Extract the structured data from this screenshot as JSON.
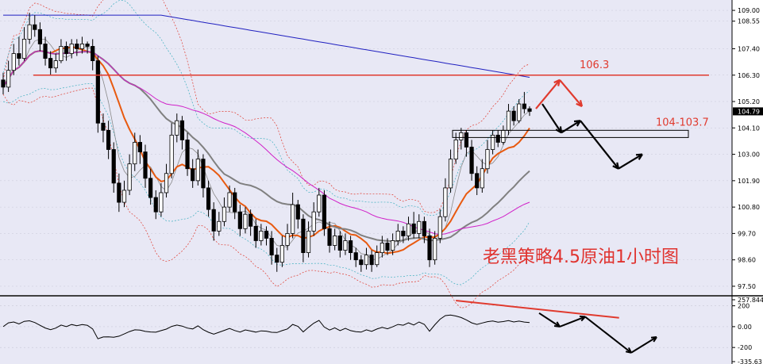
{
  "chart_data": {
    "type": "candlestick",
    "title": "老黑策略4.5原油1小时图",
    "background": "#e8e8f5",
    "price_axis": {
      "ticks": [
        "109.00",
        "108.55",
        "107.40",
        "106.30",
        "105.20",
        "104.10",
        "103.00",
        "101.90",
        "100.80",
        "99.70",
        "98.60",
        "97.50"
      ],
      "ylim": [
        97.3,
        109.3
      ],
      "last_price": "104.79"
    },
    "annotations": {
      "level_106": "106.3",
      "zone_label": "104-103.7"
    },
    "candles": [
      [
        106.1,
        105.8,
        106.4,
        105.5
      ],
      [
        105.8,
        106.5,
        106.9,
        105.6
      ],
      [
        106.5,
        107.2,
        107.6,
        106.3
      ],
      [
        107.2,
        107.0,
        107.9,
        106.7
      ],
      [
        107.0,
        107.8,
        108.3,
        106.9
      ],
      [
        107.8,
        108.4,
        108.9,
        107.6
      ],
      [
        108.4,
        108.2,
        108.8,
        107.9
      ],
      [
        108.2,
        107.6,
        108.5,
        107.3
      ],
      [
        107.6,
        107.0,
        107.9,
        106.7
      ],
      [
        107.0,
        106.6,
        107.3,
        106.3
      ],
      [
        106.6,
        106.9,
        107.2,
        106.4
      ],
      [
        106.9,
        107.5,
        107.8,
        106.8
      ],
      [
        107.5,
        107.2,
        107.7,
        106.9
      ],
      [
        107.2,
        107.6,
        107.8,
        107.0
      ],
      [
        107.6,
        107.4,
        107.8,
        107.1
      ],
      [
        107.4,
        107.6,
        107.9,
        107.2
      ],
      [
        107.6,
        107.5,
        107.7,
        107.2
      ],
      [
        107.5,
        106.9,
        107.8,
        106.5
      ],
      [
        106.9,
        104.3,
        107.1,
        103.9
      ],
      [
        104.3,
        104.0,
        104.7,
        103.5
      ],
      [
        104.0,
        103.2,
        104.4,
        102.8
      ],
      [
        103.2,
        101.8,
        103.5,
        101.4
      ],
      [
        101.8,
        101.0,
        102.2,
        100.6
      ],
      [
        101.0,
        101.5,
        101.9,
        100.8
      ],
      [
        101.5,
        102.6,
        103.0,
        101.3
      ],
      [
        102.6,
        103.5,
        103.9,
        102.3
      ],
      [
        103.5,
        103.1,
        103.8,
        102.6
      ],
      [
        103.1,
        102.0,
        103.4,
        101.6
      ],
      [
        102.0,
        101.2,
        102.4,
        100.9
      ],
      [
        101.2,
        100.6,
        101.5,
        100.3
      ],
      [
        100.6,
        101.4,
        101.8,
        100.4
      ],
      [
        101.4,
        102.2,
        102.6,
        101.2
      ],
      [
        102.2,
        103.8,
        104.3,
        102.0
      ],
      [
        103.8,
        104.4,
        104.7,
        103.5
      ],
      [
        104.4,
        103.6,
        104.6,
        103.2
      ],
      [
        103.6,
        102.4,
        103.9,
        102.1
      ],
      [
        102.4,
        101.9,
        102.8,
        101.6
      ],
      [
        101.9,
        102.8,
        103.2,
        101.7
      ],
      [
        102.8,
        101.6,
        103.0,
        101.2
      ],
      [
        101.6,
        100.7,
        101.9,
        100.4
      ],
      [
        100.7,
        99.8,
        101.0,
        99.4
      ],
      [
        99.8,
        100.2,
        100.6,
        99.6
      ],
      [
        100.2,
        100.8,
        101.2,
        100.0
      ],
      [
        100.8,
        101.4,
        101.7,
        100.6
      ],
      [
        101.4,
        100.6,
        101.6,
        100.3
      ],
      [
        100.6,
        99.9,
        100.9,
        99.6
      ],
      [
        99.9,
        100.5,
        100.8,
        99.7
      ],
      [
        100.5,
        100.0,
        100.7,
        99.6
      ],
      [
        100.0,
        99.4,
        100.3,
        99.1
      ],
      [
        99.4,
        99.8,
        100.1,
        99.2
      ],
      [
        99.8,
        99.5,
        100.0,
        99.2
      ],
      [
        99.5,
        98.8,
        99.8,
        98.4
      ],
      [
        98.8,
        98.5,
        99.1,
        98.1
      ],
      [
        98.5,
        99.2,
        99.6,
        98.3
      ],
      [
        99.2,
        99.7,
        100.1,
        99.0
      ],
      [
        99.7,
        100.9,
        101.4,
        99.5
      ],
      [
        100.9,
        100.3,
        101.1,
        99.9
      ],
      [
        100.3,
        98.9,
        100.5,
        98.5
      ],
      [
        98.9,
        99.8,
        100.2,
        98.7
      ],
      [
        99.8,
        100.6,
        101.0,
        99.6
      ],
      [
        100.6,
        101.3,
        101.6,
        100.4
      ],
      [
        101.3,
        99.9,
        101.5,
        99.6
      ],
      [
        99.9,
        99.2,
        100.2,
        98.9
      ],
      [
        99.2,
        99.6,
        99.9,
        99.0
      ],
      [
        99.6,
        99.0,
        99.8,
        98.7
      ],
      [
        99.0,
        99.4,
        99.7,
        98.8
      ],
      [
        99.4,
        98.9,
        99.6,
        98.6
      ],
      [
        98.9,
        98.6,
        99.1,
        98.3
      ],
      [
        98.6,
        98.4,
        98.8,
        98.1
      ],
      [
        98.4,
        98.8,
        99.1,
        98.2
      ],
      [
        98.8,
        98.4,
        99.0,
        98.1
      ],
      [
        98.4,
        98.9,
        99.2,
        98.3
      ],
      [
        98.9,
        99.3,
        99.6,
        98.7
      ],
      [
        99.3,
        99.0,
        99.5,
        98.8
      ],
      [
        99.0,
        99.4,
        99.7,
        98.8
      ],
      [
        99.4,
        99.8,
        100.1,
        99.2
      ],
      [
        99.8,
        99.6,
        100.0,
        99.3
      ],
      [
        99.6,
        100.1,
        100.4,
        99.4
      ],
      [
        100.1,
        99.7,
        100.6,
        99.5
      ],
      [
        99.7,
        100.2,
        100.5,
        99.5
      ],
      [
        100.2,
        99.6,
        100.4,
        99.3
      ],
      [
        99.6,
        98.6,
        99.9,
        98.3
      ],
      [
        98.6,
        99.5,
        99.8,
        98.4
      ],
      [
        99.5,
        100.4,
        100.7,
        99.3
      ],
      [
        100.4,
        101.6,
        102.0,
        100.2
      ],
      [
        101.6,
        102.8,
        103.2,
        101.4
      ],
      [
        102.8,
        103.6,
        103.9,
        102.6
      ],
      [
        103.6,
        103.9,
        104.1,
        103.2
      ],
      [
        103.9,
        103.3,
        104.0,
        102.9
      ],
      [
        103.3,
        102.2,
        103.6,
        101.9
      ],
      [
        102.2,
        101.6,
        102.5,
        101.3
      ],
      [
        101.6,
        102.4,
        102.8,
        101.4
      ],
      [
        102.4,
        103.2,
        103.6,
        102.2
      ],
      [
        103.2,
        103.8,
        104.0,
        103.0
      ],
      [
        103.8,
        103.5,
        104.0,
        103.3
      ],
      [
        103.5,
        104.0,
        104.2,
        103.4
      ],
      [
        104.0,
        104.8,
        105.1,
        103.8
      ],
      [
        104.8,
        104.4,
        105.0,
        104.2
      ],
      [
        104.4,
        105.1,
        105.3,
        104.3
      ],
      [
        105.1,
        104.9,
        105.6,
        104.7
      ],
      [
        104.9,
        104.79,
        105.0,
        104.6
      ]
    ],
    "oscillator": {
      "ticks": [
        "257.844",
        "200",
        "0.00",
        "-200",
        "-335.63"
      ],
      "ylim": [
        -335.63,
        257.844
      ]
    }
  },
  "colors": {
    "grid": "#c8c8d8",
    "bull": "#ffffff",
    "bear": "#000000",
    "resistance": "#e03a2e",
    "ma_fast": "#e85a10",
    "ma_mid": "#808080",
    "ma_slow": "#d020c8",
    "ma_long": "#2020c0"
  }
}
